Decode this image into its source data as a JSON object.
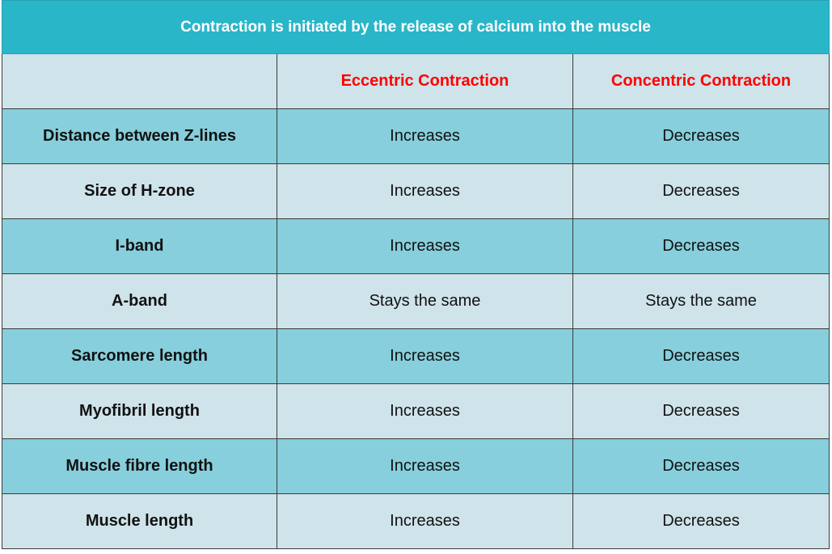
{
  "title": "Contraction is initiated by the release of calcium into the muscle",
  "columns": {
    "corner": "",
    "eccentric": "Eccentric Contraction",
    "concentric": "Concentric Contraction"
  },
  "colors": {
    "title_bg": "#29b6c9",
    "header_text": "#ff0000",
    "row_dark": "#87cfdc",
    "row_light": "#cfe3ea"
  },
  "rows": [
    {
      "label": "Distance between Z-lines",
      "eccentric": "Increases",
      "concentric": "Decreases"
    },
    {
      "label": "Size of H-zone",
      "eccentric": "Increases",
      "concentric": "Decreases"
    },
    {
      "label": "I-band",
      "eccentric": "Increases",
      "concentric": "Decreases"
    },
    {
      "label": "A-band",
      "eccentric": "Stays the same",
      "concentric": "Stays the same"
    },
    {
      "label": "Sarcomere length",
      "eccentric": "Increases",
      "concentric": "Decreases"
    },
    {
      "label": "Myofibril length",
      "eccentric": "Increases",
      "concentric": "Decreases"
    },
    {
      "label": "Muscle fibre length",
      "eccentric": "Increases",
      "concentric": "Decreases"
    },
    {
      "label": "Muscle length",
      "eccentric": "Increases",
      "concentric": "Decreases"
    }
  ]
}
